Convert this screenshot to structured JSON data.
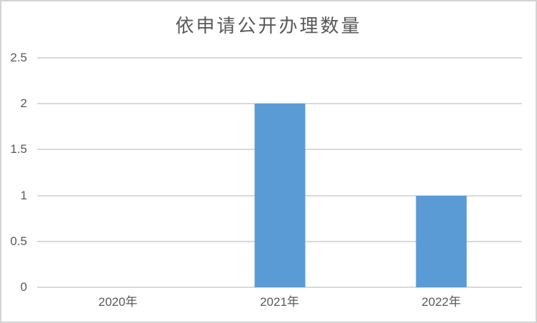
{
  "chart_data": {
    "type": "bar",
    "title": "依申请公开办理数量",
    "categories": [
      "2020年",
      "2021年",
      "2022年"
    ],
    "values": [
      0,
      2,
      1
    ],
    "xlabel": "",
    "ylabel": "",
    "ylim": [
      0,
      2.5
    ],
    "ytick_step": 0.5,
    "ytick_labels": [
      "0",
      "0.5",
      "1",
      "1.5",
      "2",
      "2.5"
    ],
    "grid": true,
    "legend_position": "none",
    "colors": {
      "bar": "#5b9bd5",
      "gridline": "#d9d9d9",
      "tick_text": "#595959",
      "title_text": "#595959",
      "frame_border": "#d3d3d3",
      "background": "#ffffff"
    }
  }
}
